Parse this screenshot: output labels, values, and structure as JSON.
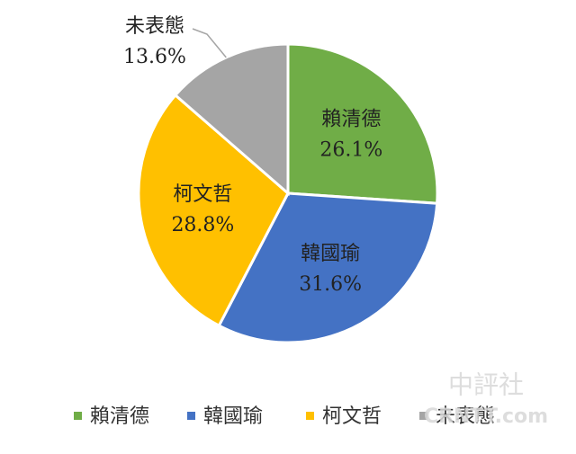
{
  "chart_data": {
    "type": "pie",
    "categories": [
      "賴清德",
      "韓國瑜",
      "柯文哲",
      "未表態"
    ],
    "values": [
      26.1,
      31.6,
      28.8,
      13.6
    ],
    "value_labels": [
      "26.1%",
      "31.6%",
      "28.8%",
      "13.6%"
    ],
    "colors": [
      "#70ad47",
      "#4472c4",
      "#ffc000",
      "#a5a5a5"
    ],
    "legend": "bottom",
    "watermark": [
      "中評社",
      "CRNTT.com"
    ]
  }
}
